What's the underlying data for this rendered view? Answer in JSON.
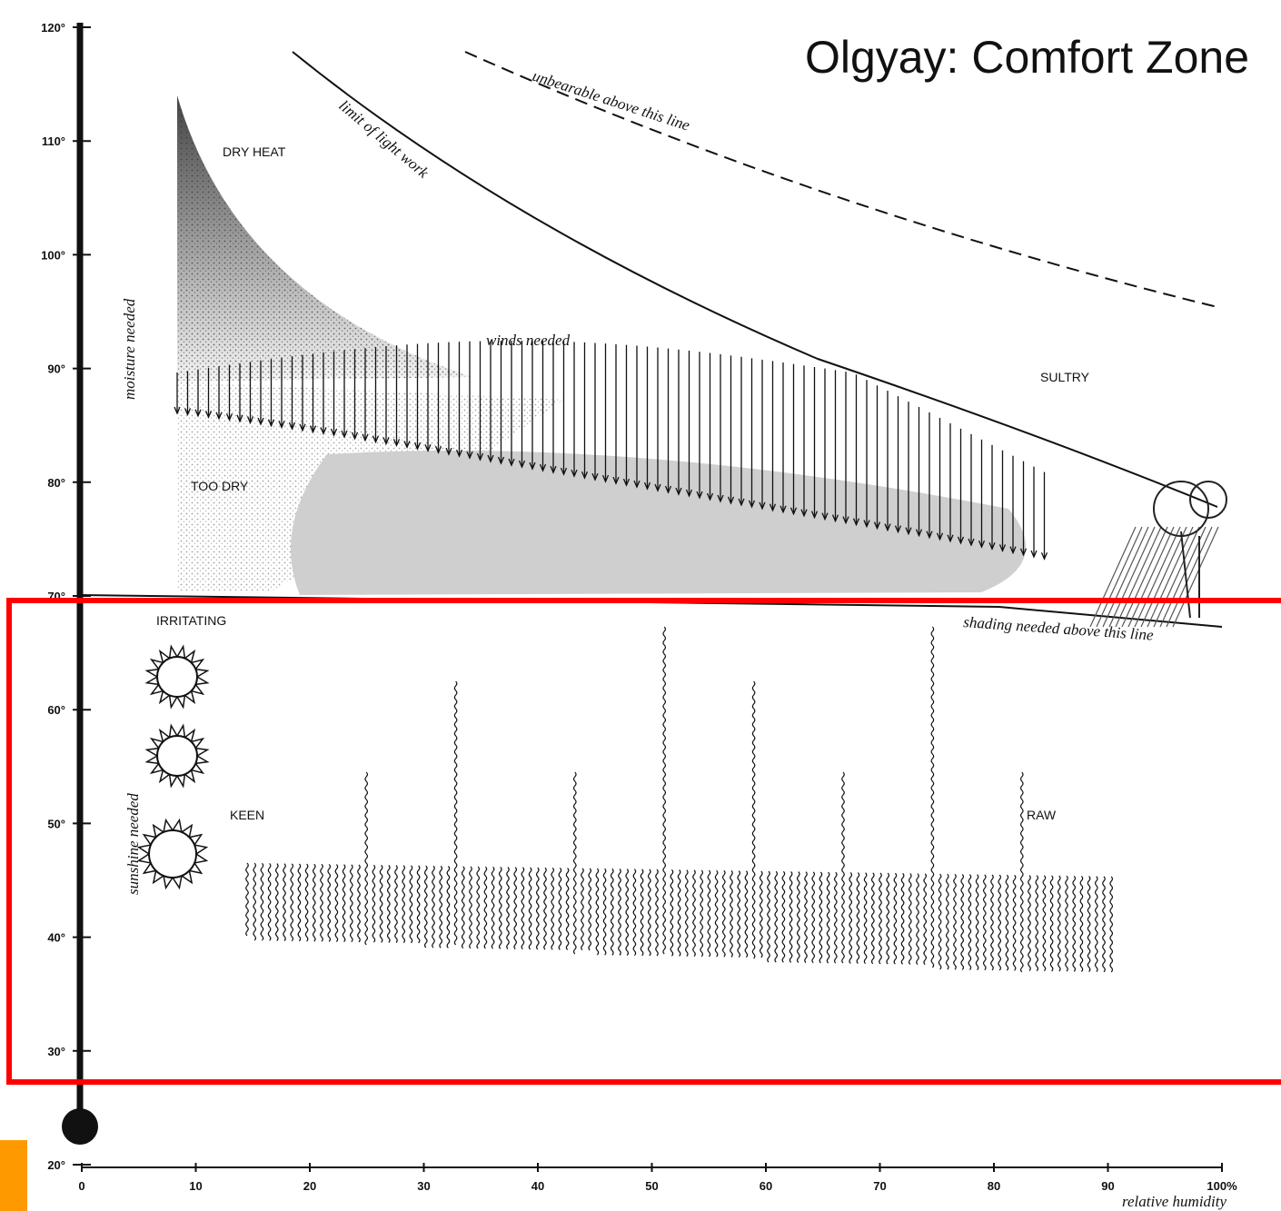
{
  "title": "Olgyay: Comfort Zone",
  "y_axis": {
    "ticks": [
      "120°",
      "110°",
      "100°",
      "90°",
      "80°",
      "70°",
      "60°",
      "50°",
      "40°",
      "30°",
      "20°"
    ]
  },
  "x_axis": {
    "ticks": [
      "0",
      "10",
      "20",
      "30",
      "40",
      "50",
      "60",
      "70",
      "80",
      "90",
      "100%"
    ],
    "label": "relative humidity"
  },
  "labels": {
    "dry_heat": "DRY HEAT",
    "limit": "limit of light work",
    "unbearable": "unbearable above this line",
    "moisture": "moisture needed",
    "winds": "winds needed",
    "sultry": "SULTRY",
    "too_dry": "TOO DRY",
    "irritating": "IRRITATING",
    "sunshine": "sunshine needed",
    "keen": "KEEN",
    "raw": "RAW",
    "shading": "shading needed above this line"
  }
}
